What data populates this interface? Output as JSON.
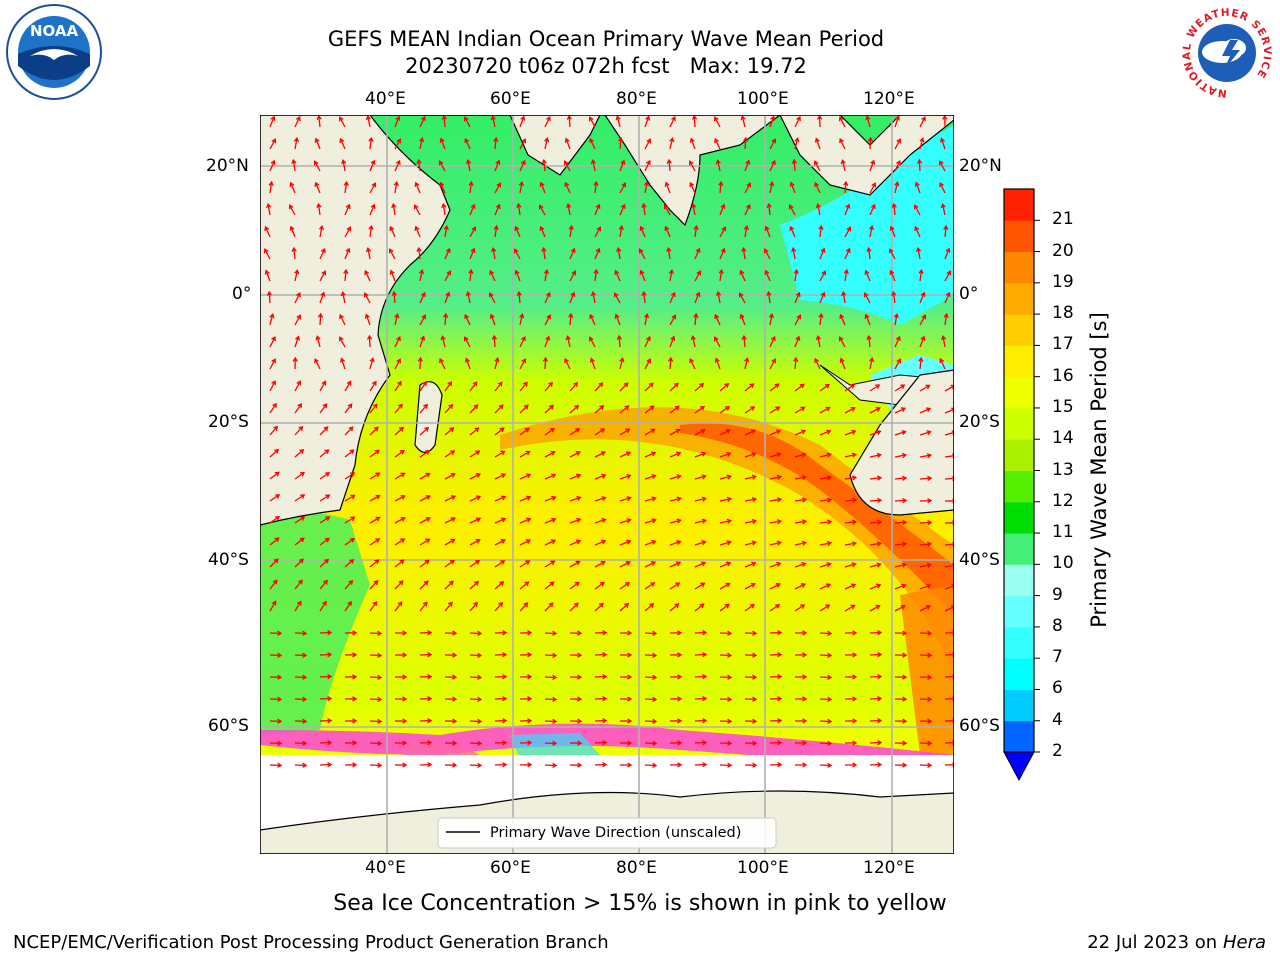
{
  "title_line1": "GEFS MEAN Indian Ocean Primary Wave Mean Period",
  "title_line2": "20230720 t06z 072h fcst   Max: 19.72",
  "lon_ticks_top": [
    "40°E",
    "60°E",
    "80°E",
    "100°E",
    "120°E"
  ],
  "lon_ticks_bottom": [
    "40°E",
    "60°E",
    "80°E",
    "100°E",
    "120°E"
  ],
  "lat_ticks_left": [
    "20°N",
    "0°",
    "20°S",
    "40°S",
    "60°S"
  ],
  "lat_ticks_right": [
    "20°N",
    "0°",
    "20°S",
    "40°S",
    "60°S"
  ],
  "legend_label": "Primary Wave Direction (unscaled)",
  "colorbar": {
    "label": "Primary Wave Mean Period [s]",
    "ticks": [
      "2",
      "4",
      "6",
      "7",
      "8",
      "9",
      "10",
      "11",
      "12",
      "13",
      "14",
      "15",
      "16",
      "17",
      "18",
      "19",
      "20",
      "21"
    ],
    "colors": [
      "#0066ff",
      "#00ccff",
      "#00ffff",
      "#33ffff",
      "#66ffff",
      "#99ffee",
      "#44ee77",
      "#00dd00",
      "#55ee00",
      "#aaee00",
      "#ccff00",
      "#eeff00",
      "#ffee00",
      "#ffcc00",
      "#ffaa00",
      "#ff8800",
      "#ff5500",
      "#ff2200"
    ],
    "under_color": "#0000ff"
  },
  "caption": "Sea Ice Concentration > 15% is shown in pink to yellow",
  "footer_left": "NCEP/EMC/Verification Post Processing Product Generation Branch",
  "footer_date": "22 Jul 2023 on ",
  "footer_machine": "Hera",
  "logos": {
    "noaa_text": "NOAA",
    "nws_text": "NATIONAL WEATHER SERVICE"
  },
  "colors": {
    "land": "#f0eedc",
    "arrow": "#ff0000",
    "ice": "#ff44dd"
  }
}
